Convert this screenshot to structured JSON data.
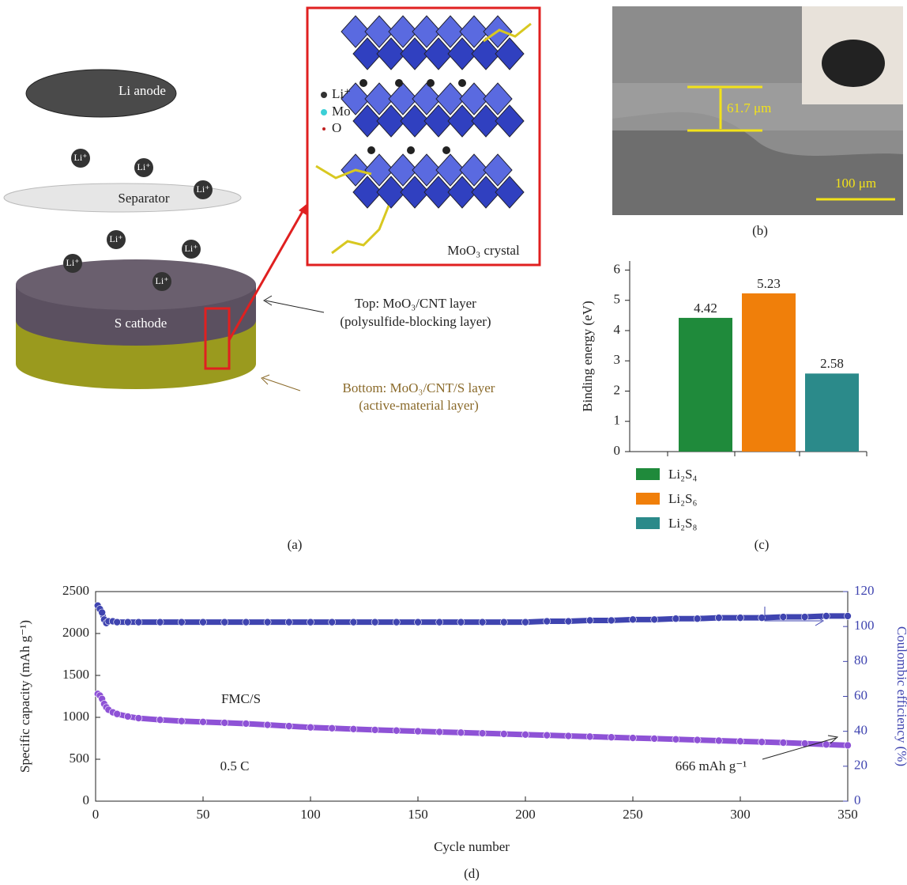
{
  "panel_a": {
    "anode": "Li anode",
    "separator": "Separator",
    "cathode": "S cathode",
    "ions": [
      "Li⁺",
      "Li⁺",
      "Li⁺",
      "Li⁺",
      "Li⁺",
      "Li⁺",
      "Li⁺"
    ],
    "inset_legend": [
      "Li⁺",
      "Mo",
      "O"
    ],
    "inset_title": "MoO₃ crystal",
    "top_layer": [
      "Top: MoO₃/CNT layer",
      "(polysulfide-blocking layer)"
    ],
    "bottom_layer": [
      "Bottom: MoO₃/CNT/S layer",
      "(active-material layer)"
    ],
    "caption": "(a)"
  },
  "panel_b": {
    "thickness": "61.7 μm",
    "scale_bar": "100 μm",
    "caption": "(b)"
  },
  "chart_data": [
    {
      "type": "bar",
      "ylabel": "Binding energy (eV)",
      "caption": "(c)",
      "series": [
        {
          "name": "Li₂S₄",
          "color": "#1f8a3b",
          "values": [
            4.42
          ]
        },
        {
          "name": "Li₂S₆",
          "color": "#f07f0a",
          "values": [
            5.23
          ]
        },
        {
          "name": "Li₂S₈",
          "color": "#2b8a8a",
          "values": [
            2.58
          ]
        }
      ],
      "ylim": [
        0,
        6.3
      ],
      "yticks": [
        0,
        1,
        2,
        3,
        4,
        5,
        6
      ]
    },
    {
      "type": "line",
      "xlabel": "Cycle number",
      "ylabel": "Specific capacity (mAh g⁻¹)",
      "y2label": "Coulombic efficiency (%)",
      "caption": "(d)",
      "annotations": [
        "FMC/S",
        "0.5 C",
        "666 mAh g⁻¹"
      ],
      "x": [
        1,
        2,
        3,
        4,
        5,
        6,
        8,
        10,
        15,
        20,
        30,
        40,
        50,
        60,
        70,
        80,
        90,
        100,
        110,
        120,
        130,
        140,
        150,
        160,
        170,
        180,
        190,
        200,
        210,
        220,
        230,
        240,
        250,
        260,
        270,
        280,
        290,
        300,
        310,
        320,
        330,
        340,
        350
      ],
      "series": [
        {
          "color": "#8e52d6",
          "values": [
            1280,
            1260,
            1220,
            1160,
            1120,
            1090,
            1060,
            1040,
            1010,
            990,
            970,
            955,
            945,
            935,
            925,
            910,
            895,
            880,
            870,
            860,
            850,
            842,
            834,
            826,
            818,
            810,
            802,
            794,
            786,
            778,
            770,
            762,
            754,
            746,
            738,
            730,
            722,
            714,
            706,
            698,
            688,
            676,
            666
          ]
        },
        {
          "color": "#3f44b0",
          "axis": "y2",
          "values": [
            112,
            110,
            108,
            104,
            102,
            103,
            103,
            102.5,
            102.5,
            102.5,
            102.5,
            102.5,
            102.5,
            102.5,
            102.5,
            102.5,
            102.5,
            102.5,
            102.5,
            102.5,
            102.5,
            102.5,
            102.5,
            102.5,
            102.5,
            102.5,
            102.5,
            102.5,
            103,
            103,
            103.5,
            103.5,
            104,
            104,
            104.5,
            104.5,
            105,
            105,
            105,
            105.5,
            105.5,
            106,
            106
          ]
        }
      ],
      "xlim": [
        0,
        350
      ],
      "ylim": [
        0,
        2500
      ],
      "y2lim": [
        0,
        120
      ],
      "xticks": [
        0,
        50,
        100,
        150,
        200,
        250,
        300,
        350
      ],
      "yticks": [
        0,
        500,
        1000,
        1500,
        2000,
        2500
      ],
      "y2ticks": [
        0,
        20,
        40,
        60,
        80,
        100,
        120
      ]
    }
  ]
}
